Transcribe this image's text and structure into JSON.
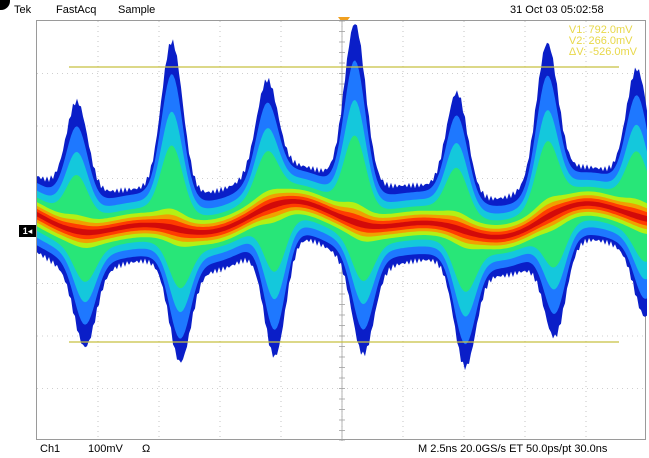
{
  "topbar": {
    "brand": "Tek",
    "mode": "FastAcq",
    "acq": "Sample",
    "datetime": "31 Oct 03 05:02:58"
  },
  "cursors": {
    "v1": "V1:  792.0mV",
    "v2": "V2:  266.0mV",
    "dv": "ΔV: -526.0mV",
    "color": "#e8d84a"
  },
  "channel_marker": "1",
  "bottombar": {
    "channel": "Ch1",
    "scale": "100mV",
    "impedance": "Ω",
    "timebase": "M 2.5ns 20.0GS/s ET 50.0ps/pt 30.0ns"
  },
  "colors": {
    "grid": "#a0a0a0",
    "cursor": "#c8c040",
    "trigger": "#f0a020",
    "persistence": [
      "#0a1ec8",
      "#1e78ff",
      "#14c8dc",
      "#28e678",
      "#b4f014",
      "#f0a000",
      "#ff3c00",
      "#d20a0a"
    ]
  }
}
